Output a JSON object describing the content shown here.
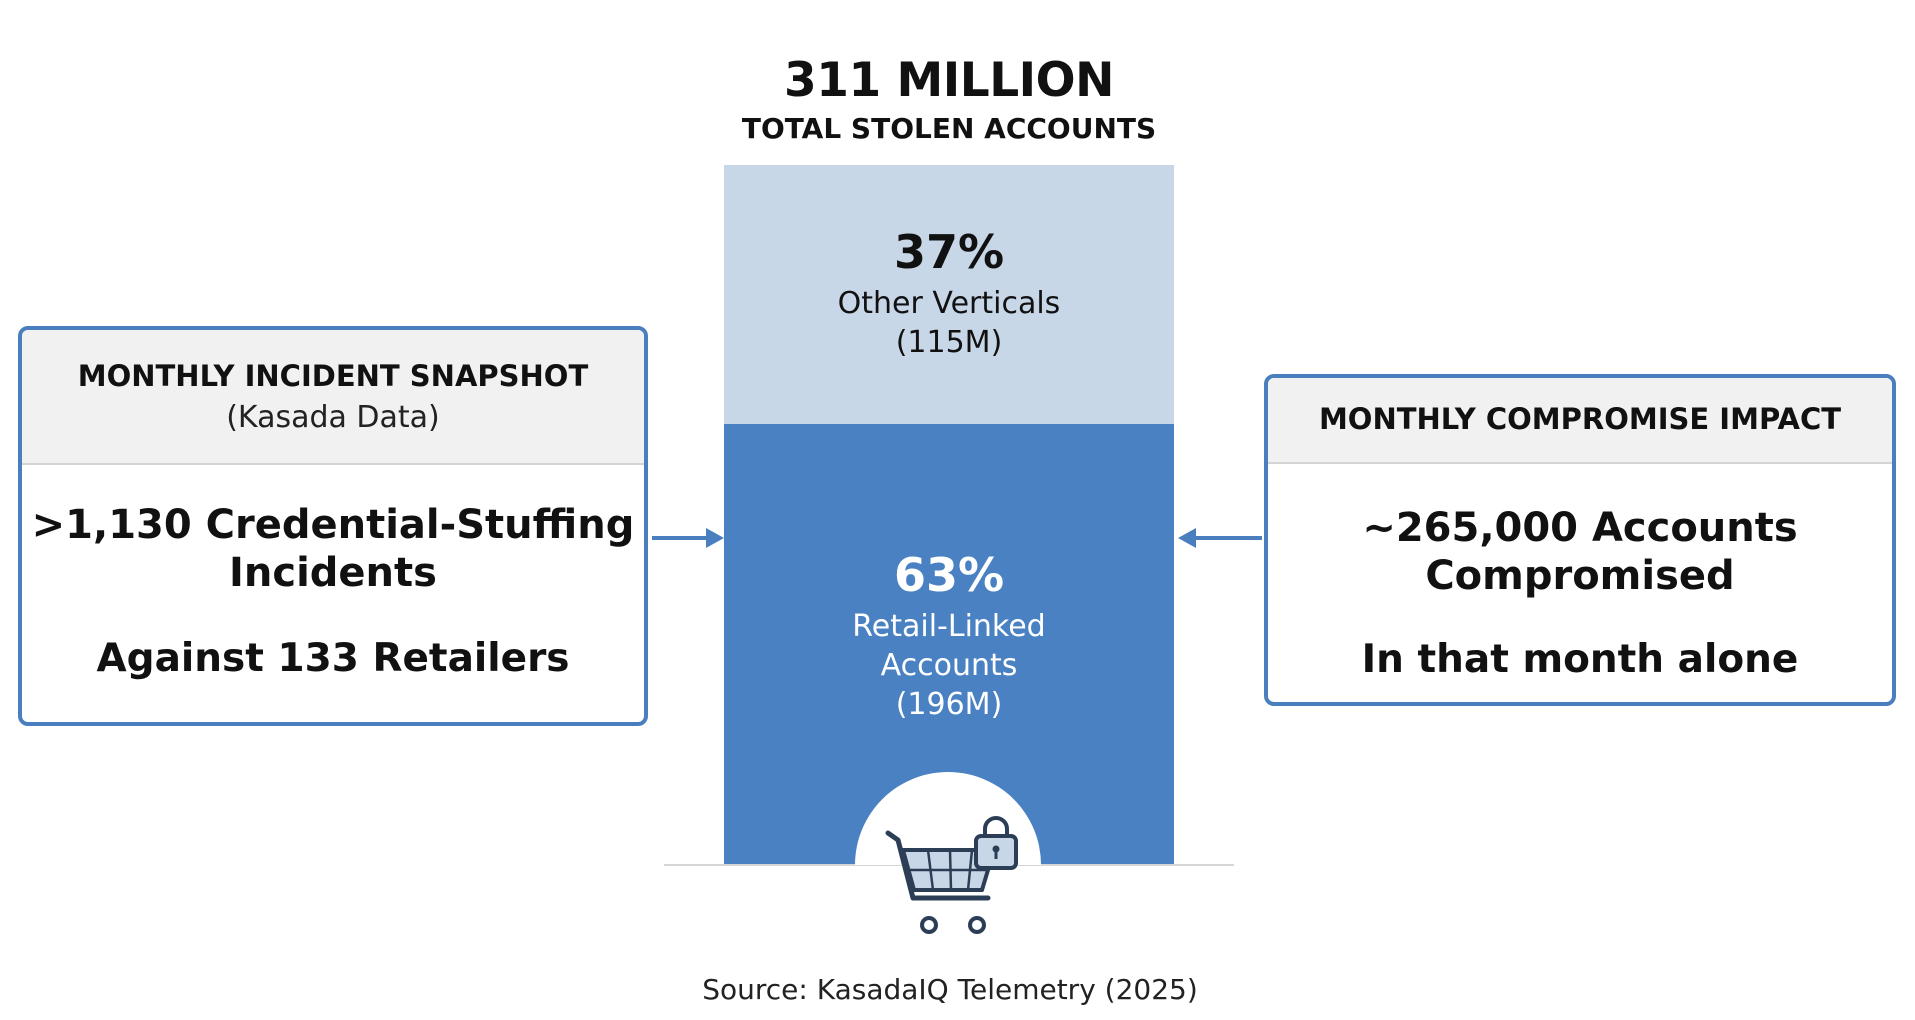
{
  "header": {
    "total": "311 MILLION",
    "subtitle": "TOTAL STOLEN ACCOUNTS"
  },
  "chart_data": {
    "type": "bar",
    "stacked": true,
    "total_millions": 311,
    "segments": [
      {
        "percent_label": "63%",
        "label_lines": [
          "Retail-Linked",
          "Accounts",
          "(196M)"
        ],
        "value_millions": 196,
        "share": 0.63,
        "color": "#4a81c3",
        "text_color": "#ffffff"
      },
      {
        "percent_label": "37%",
        "label_lines": [
          "Other Verticals",
          "(115M)"
        ],
        "value_millions": 115,
        "share": 0.37,
        "color": "#c8d7e7",
        "text_color": "#111111"
      }
    ]
  },
  "left_card": {
    "title": "MONTHLY INCIDENT SNAPSHOT",
    "subtitle": "(Kasada Data)",
    "main_line1": ">1,130 Credential-Stuffing",
    "main_line2": "Incidents",
    "secondary": "Against 133 Retailers"
  },
  "right_card": {
    "title": "MONTHLY COMPROMISE IMPACT",
    "main_line1": "~265,000 Accounts",
    "main_line2": "Compromised",
    "secondary": "In that month alone"
  },
  "icons": {
    "base": "shopping-cart-lock-icon",
    "left_arrow": "arrow-right-icon",
    "right_arrow": "arrow-left-icon"
  },
  "colors": {
    "card_border": "#4a7fbf",
    "arrow": "#4a7fbf",
    "cart_fill": "#c8d7e7",
    "cart_stroke": "#2c3e56"
  },
  "source": "Source: KasadaIQ Telemetry (2025)"
}
